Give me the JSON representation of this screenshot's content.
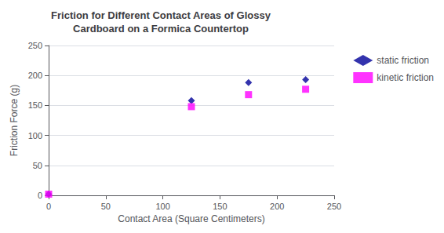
{
  "chart_data": {
    "type": "scatter",
    "title": "Friction for Different Contact Areas of Glossy\nCardboard on a Formica Countertop",
    "xlabel": "Contact Area (Square Centimeters)",
    "ylabel": "Friction Force (g)",
    "x": [
      0,
      125,
      175,
      225
    ],
    "series": [
      {
        "name": "static friction",
        "color": "#000099",
        "marker": "diamond",
        "values": [
          2,
          158,
          188,
          193
        ]
      },
      {
        "name": "kinetic friction",
        "color": "#FF00FF",
        "marker": "square",
        "values": [
          2,
          148,
          168,
          177
        ]
      }
    ],
    "xlim": [
      0,
      250
    ],
    "xticks": [
      0,
      50,
      100,
      150,
      200,
      250
    ],
    "ylim": [
      0,
      250
    ],
    "yticks": [
      0,
      50,
      100,
      150,
      200,
      250
    ],
    "grid": "y",
    "legend": "right"
  }
}
